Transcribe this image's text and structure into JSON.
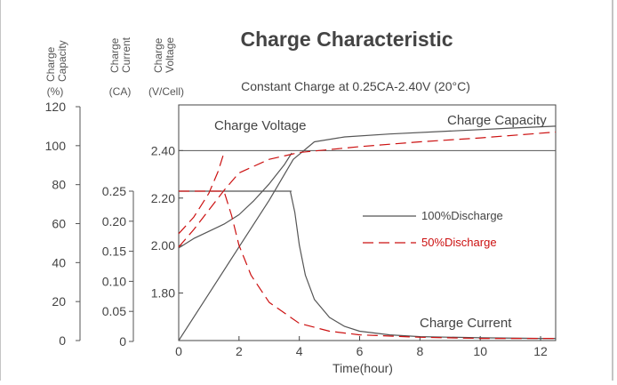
{
  "chart_data": {
    "type": "line",
    "title": "Charge Characteristic",
    "subtitle": "Constant Charge at 0.25CA-2.40V  (20°C)",
    "xlabel": "Time(hour)",
    "xlim": [
      0,
      12.5
    ],
    "x_ticks": [
      "0",
      "2",
      "4",
      "6",
      "8",
      "10",
      "12"
    ],
    "y_axes": [
      {
        "id": "capacity",
        "name_lines": [
          "Charge",
          "Capacity"
        ],
        "unit": "(%)",
        "ylim": [
          0,
          120
        ],
        "ticks": [
          "0",
          "20",
          "40",
          "60",
          "80",
          "100",
          "120"
        ]
      },
      {
        "id": "current",
        "name_lines": [
          "Charge",
          "Current"
        ],
        "unit": "(CA)",
        "ylim": [
          0,
          0.25
        ],
        "ticks": [
          "0",
          "0.05",
          "0.10",
          "0.15",
          "0.20",
          "0.25"
        ]
      },
      {
        "id": "voltage",
        "name_lines": [
          "Charge",
          "Voltage"
        ],
        "unit": "(V/Cell)",
        "ylim": [
          1.6,
          2.48
        ],
        "ticks": [
          "1.80",
          "2.00",
          "2.20",
          "2.40"
        ]
      }
    ],
    "legend": {
      "placement": "center-right",
      "entries": [
        {
          "label": "100%Discharge",
          "style": "solid",
          "color": "#555555"
        },
        {
          "label": "50%Discharge",
          "style": "dashed",
          "color": "#cc1111"
        }
      ]
    },
    "annotations": [
      "Charge Voltage",
      "Charge Capacity",
      "Charge Current"
    ],
    "reference_lines": [
      {
        "axis": "voltage",
        "y": 2.4,
        "x_range": [
          0,
          12.5
        ]
      },
      {
        "axis": "current",
        "y": 0.25,
        "x_range": [
          0,
          3.75
        ]
      }
    ],
    "series": [
      {
        "name": "100%Discharge",
        "axis": "voltage",
        "style": "solid",
        "x": [
          0,
          0.5,
          1,
          1.5,
          2,
          2.5,
          3,
          3.5,
          3.75
        ],
        "y": [
          1.99,
          2.03,
          2.06,
          2.09,
          2.13,
          2.19,
          2.26,
          2.34,
          2.39
        ]
      },
      {
        "name": "100%Discharge",
        "axis": "current",
        "style": "solid",
        "x": [
          0,
          3.7,
          3.85,
          4.0,
          4.2,
          4.5,
          5.0,
          5.5,
          6.0,
          7.0,
          8.0,
          10.0,
          12.0,
          12.5
        ],
        "y": [
          0.25,
          0.25,
          0.215,
          0.16,
          0.11,
          0.07,
          0.04,
          0.025,
          0.017,
          0.011,
          0.008,
          0.006,
          0.005,
          0.005
        ]
      },
      {
        "name": "100%Discharge",
        "axis": "capacity",
        "style": "solid",
        "x": [
          0,
          1,
          2,
          3,
          3.8,
          4.5,
          5.5,
          7,
          9,
          11,
          12.5
        ],
        "y": [
          0,
          24,
          48,
          72,
          93,
          102,
          104.5,
          106,
          107.5,
          109,
          110
        ]
      },
      {
        "name": "50%Discharge",
        "axis": "voltage",
        "style": "dashed",
        "x": [
          0,
          0.5,
          1.0,
          1.3,
          1.5
        ],
        "y": [
          2.05,
          2.12,
          2.22,
          2.31,
          2.39
        ]
      },
      {
        "name": "50%Discharge",
        "axis": "current",
        "style": "dashed",
        "x": [
          0,
          1.5,
          1.75,
          2.0,
          2.4,
          3.0,
          4.0,
          5.0,
          6.0,
          8.0,
          10.0,
          12.5
        ],
        "y": [
          0.25,
          0.25,
          0.21,
          0.16,
          0.11,
          0.065,
          0.03,
          0.017,
          0.011,
          0.007,
          0.005,
          0.005
        ]
      },
      {
        "name": "50%Discharge",
        "axis": "capacity",
        "style": "dashed",
        "x": [
          0,
          0.5,
          1.0,
          1.5,
          2.0,
          3.0,
          4.0,
          6.0,
          8.0,
          10.0,
          12.5
        ],
        "y": [
          48,
          57,
          67,
          77,
          86,
          93,
          96.5,
          99.5,
          102,
          104,
          107
        ]
      }
    ]
  }
}
